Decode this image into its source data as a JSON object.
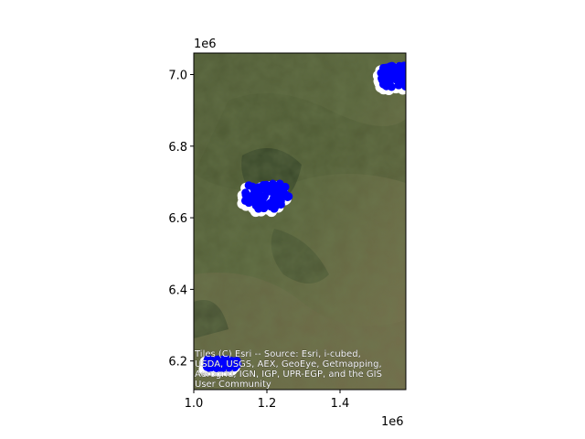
{
  "chart_data": {
    "type": "scatter",
    "title": "",
    "xlabel": "",
    "ylabel": "",
    "x_offset_label": "1e6",
    "y_offset_label": "1e6",
    "xlim": [
      1.0,
      1.58
    ],
    "ylim": [
      6.12,
      7.06
    ],
    "x_ticks": [
      {
        "value": 1.0,
        "label": "1.0"
      },
      {
        "value": 1.2,
        "label": "1.2"
      },
      {
        "value": 1.4,
        "label": "1.4"
      }
    ],
    "y_ticks": [
      {
        "value": 6.2,
        "label": "6.2"
      },
      {
        "value": 6.4,
        "label": "6.4"
      },
      {
        "value": 6.6,
        "label": "6.6"
      },
      {
        "value": 6.8,
        "label": "6.8"
      },
      {
        "value": 7.0,
        "label": "7.0"
      }
    ],
    "marker_color": "#0000ff",
    "halo_color": "#ffffff",
    "clusters": [
      {
        "x_range": [
          1.14,
          1.26
        ],
        "y_range": [
          6.625,
          6.695
        ]
      },
      {
        "x_range": [
          1.51,
          1.6
        ],
        "y_range": [
          6.965,
          7.025
        ]
      },
      {
        "x_range": [
          1.035,
          1.12
        ],
        "y_range": [
          6.18,
          6.205
        ]
      }
    ],
    "basemap": "satellite imagery",
    "attribution_lines": [
      "Tiles (C) Esri -- Source: Esri, i-cubed,",
      "USDA, USGS, AEX, GeoEye, Getmapping,",
      "Aerogrid, IGN, IGP, UPR-EGP, and the GIS",
      "User Community"
    ]
  }
}
